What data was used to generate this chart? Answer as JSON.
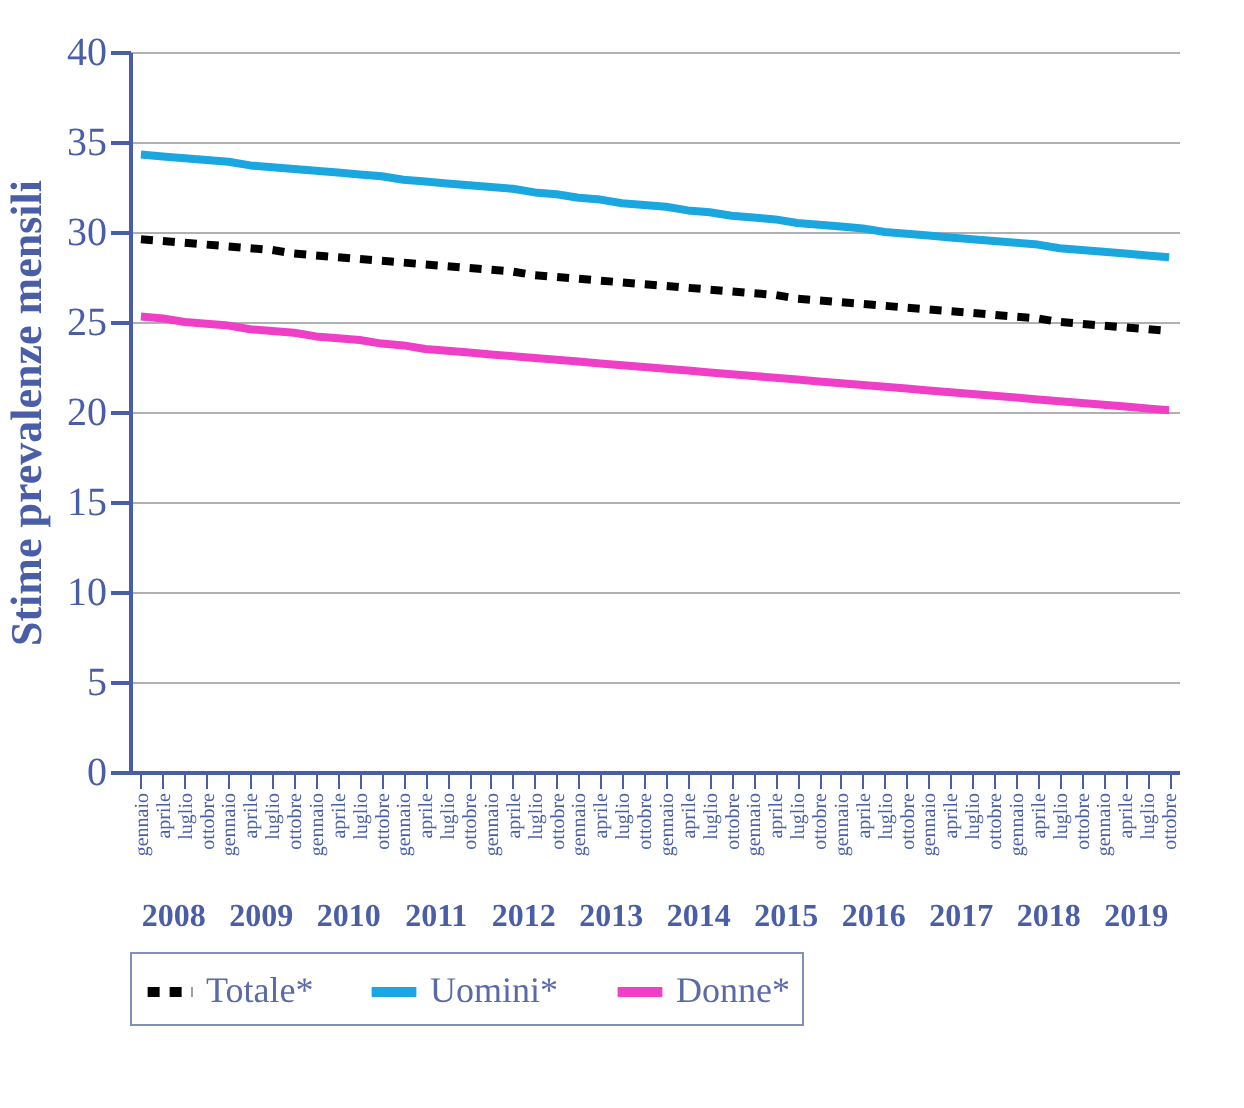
{
  "chart_data": {
    "type": "line",
    "ylabel": "Stime prevalenze mensili",
    "categories": [
      "gennaio",
      "aprile",
      "luglio",
      "ottobre",
      "gennaio",
      "aprile",
      "luglio",
      "ottobre",
      "gennaio",
      "aprile",
      "luglio",
      "ottobre",
      "gennaio",
      "aprile",
      "luglio",
      "ottobre",
      "gennaio",
      "aprile",
      "luglio",
      "ottobre",
      "gennaio",
      "aprile",
      "luglio",
      "ottobre",
      "gennaio",
      "aprile",
      "luglio",
      "ottobre",
      "gennaio",
      "aprile",
      "luglio",
      "ottobre",
      "gennaio",
      "aprile",
      "luglio",
      "ottobre",
      "gennaio",
      "aprile",
      "luglio",
      "ottobre",
      "gennaio",
      "aprile",
      "luglio",
      "ottobre",
      "gennaio",
      "aprile",
      "luglio",
      "ottobre"
    ],
    "annotations": [
      "2008",
      "2009",
      "2010",
      "2011",
      "2012",
      "2013",
      "2014",
      "2015",
      "2016",
      "2017",
      "2018",
      "2019"
    ],
    "series": [
      {
        "name": "Totale*",
        "color": "#000000",
        "line_style": "dashed",
        "values": [
          29.6,
          29.5,
          29.4,
          29.3,
          29.2,
          29.1,
          29.0,
          28.8,
          28.7,
          28.6,
          28.5,
          28.4,
          28.3,
          28.2,
          28.1,
          28.0,
          27.9,
          27.8,
          27.6,
          27.5,
          27.4,
          27.3,
          27.2,
          27.1,
          27.0,
          26.9,
          26.8,
          26.7,
          26.6,
          26.5,
          26.3,
          26.2,
          26.1,
          26.0,
          25.9,
          25.8,
          25.7,
          25.6,
          25.5,
          25.4,
          25.3,
          25.2,
          25.0,
          24.9,
          24.8,
          24.7,
          24.6,
          24.5
        ]
      },
      {
        "name": "Uomini*",
        "color": "#1aa6de",
        "line_style": "solid",
        "values": [
          34.3,
          34.2,
          34.1,
          34.0,
          33.9,
          33.7,
          33.6,
          33.5,
          33.4,
          33.3,
          33.2,
          33.1,
          32.9,
          32.8,
          32.7,
          32.6,
          32.5,
          32.4,
          32.2,
          32.1,
          31.9,
          31.8,
          31.6,
          31.5,
          31.4,
          31.2,
          31.1,
          30.9,
          30.8,
          30.7,
          30.5,
          30.4,
          30.3,
          30.2,
          30.0,
          29.9,
          29.8,
          29.7,
          29.6,
          29.5,
          29.4,
          29.3,
          29.1,
          29.0,
          28.9,
          28.8,
          28.7,
          28.6
        ]
      },
      {
        "name": "Donne*",
        "color": "#ee3fc6",
        "line_style": "solid",
        "values": [
          25.3,
          25.2,
          25.0,
          24.9,
          24.8,
          24.6,
          24.5,
          24.4,
          24.2,
          24.1,
          24.0,
          23.8,
          23.7,
          23.5,
          23.4,
          23.3,
          23.2,
          23.1,
          23.0,
          22.9,
          22.8,
          22.7,
          22.6,
          22.5,
          22.4,
          22.3,
          22.2,
          22.1,
          22.0,
          21.9,
          21.8,
          21.7,
          21.6,
          21.5,
          21.4,
          21.3,
          21.2,
          21.1,
          21.0,
          20.9,
          20.8,
          20.7,
          20.6,
          20.5,
          20.4,
          20.3,
          20.2,
          20.1
        ]
      }
    ],
    "ylim": [
      0,
      40
    ],
    "yticks": [
      0,
      5,
      10,
      15,
      20,
      25,
      30,
      35,
      40
    ],
    "grid": "y",
    "legend": "bottom",
    "marker": "none"
  }
}
